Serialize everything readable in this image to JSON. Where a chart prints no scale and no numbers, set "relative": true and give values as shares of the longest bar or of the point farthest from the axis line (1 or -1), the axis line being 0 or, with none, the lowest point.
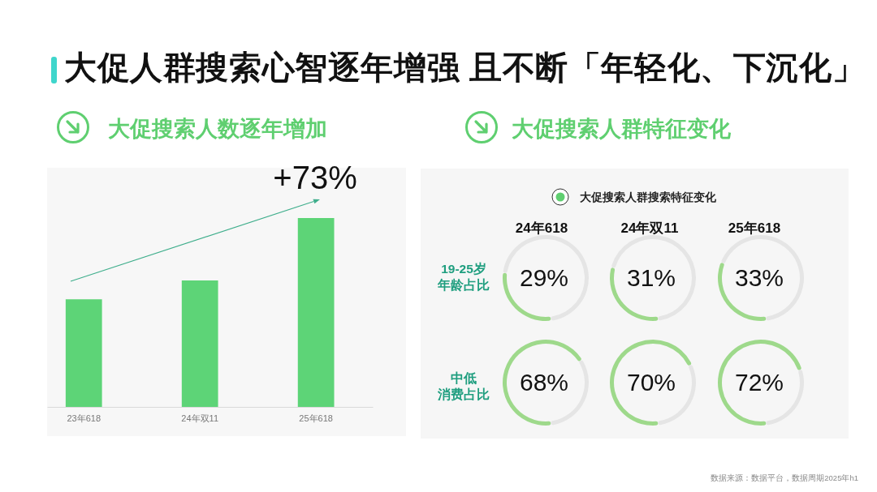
{
  "chart_data": [
    {
      "type": "other",
      "title": "大促人群搜索心智逐年增强 且不断「年轻化、下沉化」",
      "annotations": [
        "数据来源：数据平台，数据周期2025年h1"
      ]
    },
    {
      "type": "bar",
      "title": "大促搜索人数逐年增加",
      "categories": [
        "23年618",
        "24年双11",
        "25年618"
      ],
      "values": [
        0.57,
        0.67,
        1
      ],
      "relative": true,
      "color": "#5dd477",
      "annotations": [
        "+73%"
      ]
    },
    {
      "type": "other",
      "title": "大促搜索人群特征变化",
      "annotations": [
        "大促搜索人群搜索特征变化",
        "24年618",
        "24年双11",
        "25年618",
        "19-25岁",
        "年龄占比",
        "中低",
        "消费占比"
      ]
    },
    {
      "type": "donut",
      "categories": [
        null,
        null
      ],
      "values": [
        29,
        71
      ],
      "colors": [
        "#9ed98b",
        "#e5e5e5"
      ],
      "value_labels": [
        "29%",
        null
      ]
    },
    {
      "type": "donut",
      "categories": [
        null,
        null
      ],
      "values": [
        31,
        69
      ],
      "colors": [
        "#9ed98b",
        "#e5e5e5"
      ],
      "value_labels": [
        "31%",
        null
      ]
    },
    {
      "type": "donut",
      "categories": [
        null,
        null
      ],
      "values": [
        33,
        67
      ],
      "colors": [
        "#9ed98b",
        "#e5e5e5"
      ],
      "value_labels": [
        "33%",
        null
      ]
    },
    {
      "type": "donut",
      "categories": [
        null,
        null
      ],
      "values": [
        68,
        32
      ],
      "colors": [
        "#9ed98b",
        "#e5e5e5"
      ],
      "value_labels": [
        "68%",
        null
      ]
    },
    {
      "type": "donut",
      "categories": [
        null,
        null
      ],
      "values": [
        70,
        30
      ],
      "colors": [
        "#9ed98b",
        "#e5e5e5"
      ],
      "value_labels": [
        "70%",
        null
      ]
    },
    {
      "type": "donut",
      "categories": [
        null,
        null
      ],
      "values": [
        72,
        28
      ],
      "colors": [
        "#9ed98b",
        "#e5e5e5"
      ],
      "value_labels": [
        "72%",
        null
      ]
    }
  ]
}
